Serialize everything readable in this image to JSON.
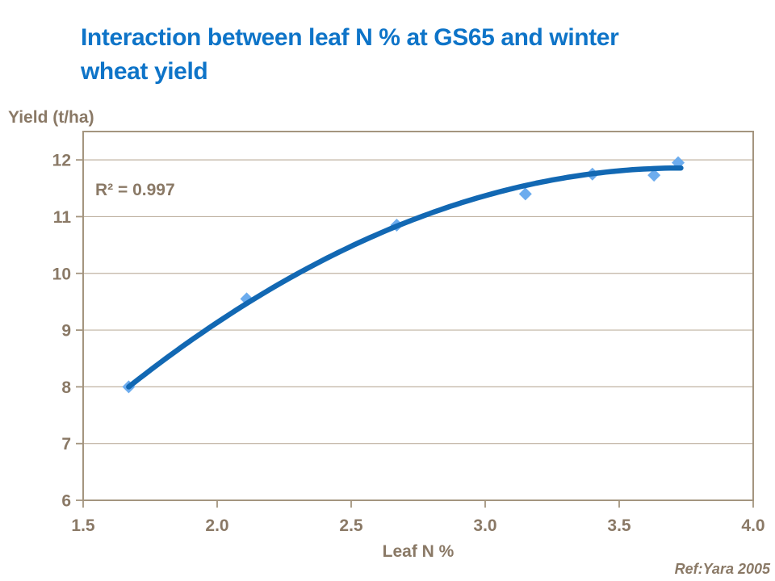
{
  "title": {
    "line1": "Interaction between leaf N % at GS65 and winter",
    "line2": "wheat yield"
  },
  "footer": {
    "reference": "Ref:Yara 2005"
  },
  "colors": {
    "title_blue": "#0E74C8",
    "curve_blue": "#1268B3",
    "marker_blue": "#6CACEE",
    "text_brown": "#8A7966",
    "gridline": "#C0B3A2",
    "frame": "#A4957F"
  },
  "chart_data": {
    "type": "scatter",
    "title": "Interaction between leaf N % at GS65 and winter wheat yield",
    "xlabel": "Leaf N %",
    "ylabel": "Yield (t/ha)",
    "annotation": "R² = 0.997",
    "xlim": [
      1.5,
      4.0
    ],
    "ylim": [
      6,
      12.5
    ],
    "x_ticks": [
      1.5,
      2.0,
      2.5,
      3.0,
      3.5,
      4.0
    ],
    "x_tick_labels": [
      "1.5",
      "2.0",
      "2.5",
      "3.0",
      "3.5",
      "4.0"
    ],
    "y_ticks": [
      6,
      7,
      8,
      9,
      10,
      11,
      12
    ],
    "y_tick_labels": [
      "6",
      "7",
      "8",
      "9",
      "10",
      "11",
      "12"
    ],
    "grid": "horizontal",
    "legend": "none",
    "points": [
      [
        1.67,
        8.0
      ],
      [
        2.11,
        9.55
      ],
      [
        2.67,
        10.85
      ],
      [
        3.15,
        11.4
      ],
      [
        3.4,
        11.75
      ],
      [
        3.63,
        11.73
      ],
      [
        3.72,
        11.95
      ]
    ],
    "trendline": {
      "type": "polynomial2",
      "a": -0.766,
      "b": 6.76,
      "c": -0.905,
      "x_start": 1.67,
      "x_end": 3.73
    }
  }
}
